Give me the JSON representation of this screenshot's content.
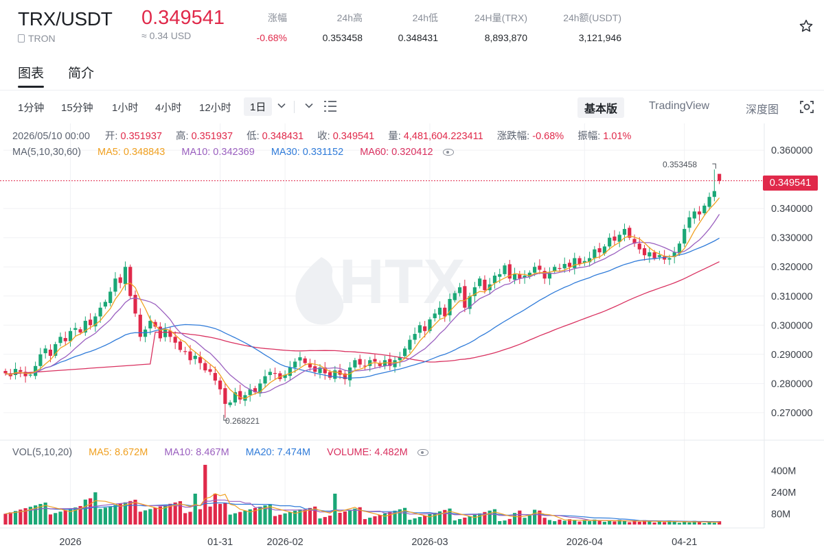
{
  "ticker": {
    "pair": "TRX/USDT",
    "chain": "TRON",
    "last_price": "0.349541",
    "fiat_value": "≈ 0.34 USD",
    "stats": [
      {
        "key": "涨幅",
        "value": "-0.68%",
        "down": true
      },
      {
        "key": "24h高",
        "value": "0.353458",
        "down": false
      },
      {
        "key": "24h低",
        "value": "0.348431",
        "down": false
      },
      {
        "key": "24H量(TRX)",
        "value": "8,893,870",
        "down": false
      },
      {
        "key": "24h额(USDT)",
        "value": "3,121,946",
        "down": false
      }
    ],
    "favorite_icon": "star-outline-icon"
  },
  "tabs": [
    {
      "label": "图表",
      "active": true
    },
    {
      "label": "简介",
      "active": false
    }
  ],
  "toolbar": {
    "timeframes": [
      "1分钟",
      "15分钟",
      "1小时",
      "4小时",
      "12小时",
      "1日"
    ],
    "selected_timeframe": "1日",
    "views": [
      "基本版",
      "TradingView",
      "深度图"
    ],
    "selected_view": "基本版"
  },
  "ohlc": {
    "date": "2026/05/10 00:00",
    "open_label": "开:",
    "open": "0.351937",
    "high_label": "高:",
    "high": "0.351937",
    "low_label": "低:",
    "low": "0.348431",
    "close_label": "收:",
    "close": "0.349541",
    "vol_label": "量:",
    "vol": "4,481,604.223411",
    "chg_label": "涨跌幅:",
    "chg": "-0.68%",
    "amp_label": "振幅:",
    "amp": "1.01%"
  },
  "ma": {
    "label": "MA(5,10,30,60)",
    "ma5": "MA5: 0.348843",
    "ma10": "MA10: 0.342369",
    "ma30": "MA30: 0.331152",
    "ma60": "MA60: 0.320412"
  },
  "vol_legend": {
    "label": "VOL(5,10,20)",
    "ma5": "MA5: 8.672M",
    "ma10": "MA10: 8.467M",
    "ma20": "MA20: 7.474M",
    "volume": "VOLUME: 4.482M"
  },
  "watermark": "HTX",
  "annotations": {
    "high": "0.353458",
    "low": "0.268221"
  },
  "current_price_tag": "0.349541",
  "colors": {
    "up": "#1aa776",
    "down": "#e0294a",
    "ma5": "#f0a020",
    "ma10": "#9a5fbf",
    "ma30": "#2f7bd9",
    "ma60": "#d9305f"
  },
  "chart_data": {
    "type": "candlestick",
    "price_axis": {
      "ticks": [
        0.36,
        0.34,
        0.33,
        0.32,
        0.31,
        0.3,
        0.29,
        0.28,
        0.27
      ],
      "tick_labels": [
        "0.360000",
        "0.340000",
        "0.330000",
        "0.320000",
        "0.310000",
        "0.300000",
        "0.290000",
        "0.280000",
        "0.270000"
      ],
      "ylim": [
        0.2615,
        0.3645
      ]
    },
    "volume_axis": {
      "tick_labels": [
        "400M",
        "240M",
        "80M"
      ],
      "ticks": [
        400,
        240,
        80
      ],
      "ylim": [
        0,
        460
      ]
    },
    "x_tick_labels": [
      "2026",
      "01-31",
      "2026-02",
      "2026-03",
      "2026-04",
      "04-21"
    ],
    "x_tick_days": [
      13,
      43,
      56,
      85,
      116,
      136
    ],
    "start": "2025-12-19",
    "candles_close": [
      0.2835,
      0.2825,
      0.285,
      0.284,
      0.2825,
      0.283,
      0.286,
      0.29,
      0.292,
      0.2895,
      0.2935,
      0.296,
      0.2945,
      0.298,
      0.299,
      0.2975,
      0.3015,
      0.3,
      0.303,
      0.306,
      0.308,
      0.3115,
      0.316,
      0.3145,
      0.32,
      0.31,
      0.304,
      0.296,
      0.2985,
      0.3015,
      0.2995,
      0.2955,
      0.2985,
      0.296,
      0.294,
      0.2915,
      0.291,
      0.288,
      0.2895,
      0.287,
      0.2845,
      0.284,
      0.281,
      0.278,
      0.273,
      0.2735,
      0.277,
      0.2745,
      0.276,
      0.278,
      0.277,
      0.28,
      0.2825,
      0.284,
      0.2835,
      0.2815,
      0.283,
      0.2855,
      0.2875,
      0.289,
      0.287,
      0.2855,
      0.284,
      0.2855,
      0.2835,
      0.282,
      0.2845,
      0.283,
      0.2815,
      0.2855,
      0.288,
      0.2865,
      0.286,
      0.288,
      0.2875,
      0.286,
      0.288,
      0.286,
      0.288,
      0.289,
      0.292,
      0.295,
      0.297,
      0.3,
      0.298,
      0.302,
      0.304,
      0.306,
      0.303,
      0.309,
      0.311,
      0.313,
      0.306,
      0.31,
      0.313,
      0.316,
      0.312,
      0.314,
      0.317,
      0.3175,
      0.3205,
      0.316,
      0.3175,
      0.316,
      0.317,
      0.318,
      0.32,
      0.319,
      0.316,
      0.318,
      0.32,
      0.3195,
      0.321,
      0.32,
      0.323,
      0.321,
      0.322,
      0.323,
      0.326,
      0.325,
      0.327,
      0.33,
      0.329,
      0.331,
      0.333,
      0.33,
      0.328,
      0.326,
      0.324,
      0.325,
      0.323,
      0.324,
      0.3225,
      0.323,
      0.325,
      0.328,
      0.333,
      0.337,
      0.339,
      0.338,
      0.341,
      0.344,
      0.346,
      0.3495
    ],
    "series": [
      {
        "name": "MA5"
      },
      {
        "name": "MA10"
      },
      {
        "name": "MA30"
      },
      {
        "name": "MA60"
      },
      {
        "name": "VOLUME"
      }
    ]
  }
}
